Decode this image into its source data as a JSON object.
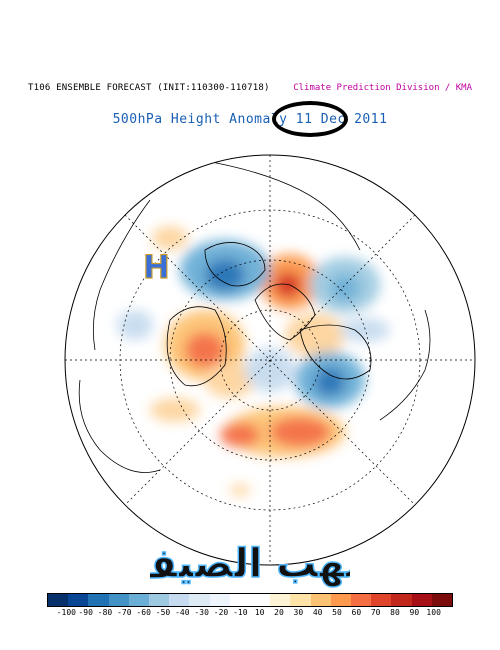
{
  "header": {
    "left_title": "T106 ENSEMBLE FORECAST (INIT:110300-110718)",
    "right_title": "Climate Prediction Division / KMA",
    "subtitle": "500hPa Height Anomaly 11 Dec 2011"
  },
  "map": {
    "projection": "north polar stereographic",
    "high_label": "H",
    "colors": {
      "strong_pos": "#d7301f",
      "mid_pos": "#fc8d59",
      "weak_pos": "#fdd49e",
      "weak_neg": "#c6dbef",
      "mid_neg": "#6baed6",
      "strong_neg": "#2171b5"
    }
  },
  "colorbar": {
    "labels": [
      "-100",
      "-90",
      "-80",
      "-70",
      "-60",
      "-50",
      "-40",
      "-30",
      "-20",
      "-10",
      "10",
      "20",
      "30",
      "40",
      "50",
      "60",
      "70",
      "80",
      "90",
      "100"
    ],
    "colors": [
      "#08306b",
      "#084594",
      "#2171b5",
      "#4292c6",
      "#6baed6",
      "#9ecae1",
      "#c6dbef",
      "#deebf7",
      "#eef5fc",
      "#ffffff",
      "#ffffff",
      "#fff3d6",
      "#fee3a8",
      "#fdc272",
      "#fd9a4e",
      "#f46d43",
      "#e0452c",
      "#c2271c",
      "#a50f15",
      "#7a0c0c"
    ]
  },
  "watermark": {
    "text": "مهب الصيف"
  }
}
